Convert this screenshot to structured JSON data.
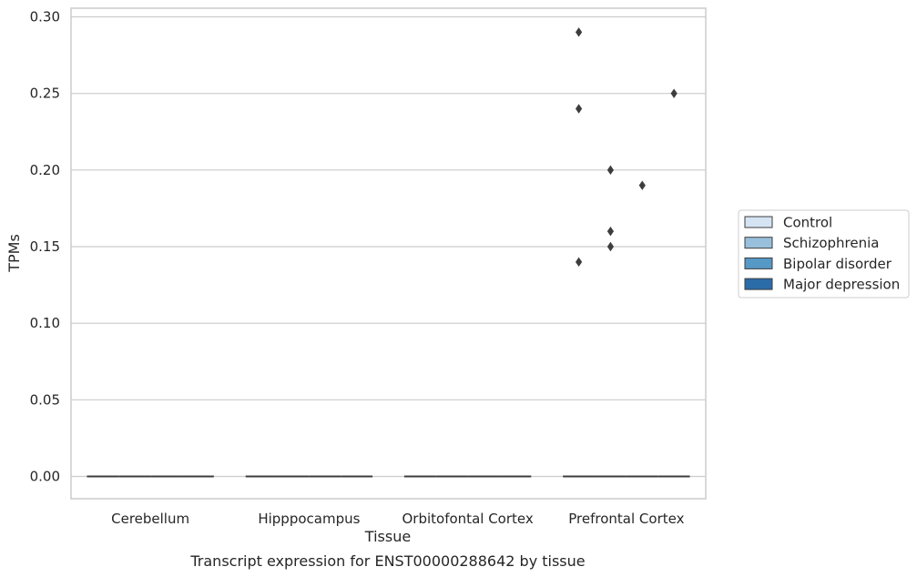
{
  "chart_data": {
    "type": "box",
    "title": "",
    "caption": "Transcript expression for ENST00000288642 by tissue",
    "xlabel": "Tissue",
    "ylabel": "TPMs",
    "ylim": [
      -0.014,
      0.305
    ],
    "yticks": [
      "0.00",
      "0.05",
      "0.10",
      "0.15",
      "0.20",
      "0.25",
      "0.30"
    ],
    "grid": true,
    "legend_position": "right",
    "categories": [
      "Cerebellum",
      "Hipppocampus",
      "Orbitofontal Cortex",
      "Prefrontal Cortex"
    ],
    "series": [
      {
        "name": "Control",
        "color": "#d4e4f2"
      },
      {
        "name": "Schizophrenia",
        "color": "#98c0dc"
      },
      {
        "name": "Bipolar disorder",
        "color": "#5698c6"
      },
      {
        "name": "Major depression",
        "color": "#2a6ca8"
      }
    ],
    "boxes": [
      {
        "category": "Cerebellum",
        "series": "Control",
        "median": 0
      },
      {
        "category": "Cerebellum",
        "series": "Schizophrenia",
        "median": 0
      },
      {
        "category": "Cerebellum",
        "series": "Bipolar disorder",
        "median": 0
      },
      {
        "category": "Cerebellum",
        "series": "Major depression",
        "median": 0
      },
      {
        "category": "Hipppocampus",
        "series": "Control",
        "median": 0
      },
      {
        "category": "Hipppocampus",
        "series": "Schizophrenia",
        "median": 0
      },
      {
        "category": "Hipppocampus",
        "series": "Bipolar disorder",
        "median": 0
      },
      {
        "category": "Hipppocampus",
        "series": "Major depression",
        "median": 0
      },
      {
        "category": "Orbitofontal Cortex",
        "series": "Control",
        "median": 0
      },
      {
        "category": "Orbitofontal Cortex",
        "series": "Schizophrenia",
        "median": 0
      },
      {
        "category": "Orbitofontal Cortex",
        "series": "Bipolar disorder",
        "median": 0
      },
      {
        "category": "Orbitofontal Cortex",
        "series": "Major depression",
        "median": 0
      },
      {
        "category": "Prefrontal Cortex",
        "series": "Control",
        "median": 0
      },
      {
        "category": "Prefrontal Cortex",
        "series": "Schizophrenia",
        "median": 0
      },
      {
        "category": "Prefrontal Cortex",
        "series": "Bipolar disorder",
        "median": 0
      },
      {
        "category": "Prefrontal Cortex",
        "series": "Major depression",
        "median": 0
      }
    ],
    "outliers": [
      {
        "category": "Prefrontal Cortex",
        "series": "Control",
        "values": [
          0.29,
          0.24,
          0.14
        ]
      },
      {
        "category": "Prefrontal Cortex",
        "series": "Schizophrenia",
        "values": [
          0.2,
          0.16,
          0.15
        ]
      },
      {
        "category": "Prefrontal Cortex",
        "series": "Bipolar disorder",
        "values": [
          0.19
        ]
      },
      {
        "category": "Prefrontal Cortex",
        "series": "Major depression",
        "values": [
          0.25
        ]
      }
    ]
  }
}
